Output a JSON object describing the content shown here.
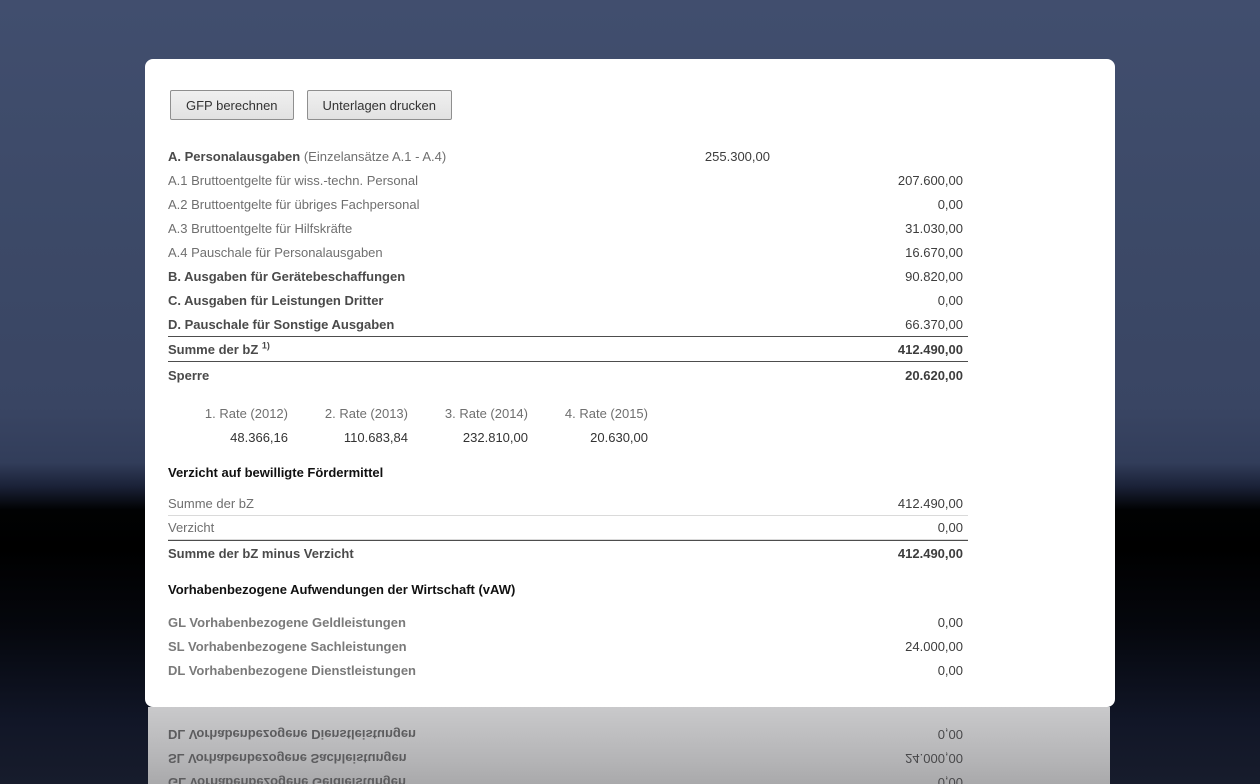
{
  "colors": {
    "background_top": "#3e4a68",
    "background_bottom": "#171c2c",
    "panel": "#ffffff",
    "label_muted": "#6f6f6f",
    "label_strong": "#4a4a4a",
    "heading": "#111111",
    "value": "#3d3d3d",
    "value_total": "#1f1f1f",
    "rule_dark": "#4d4d4d",
    "rule_light": "#dadada",
    "reflection_bg": "#bcbcbe"
  },
  "toolbar": {
    "calculate_label": "GFP berechnen",
    "print_label": "Unterlagen drucken"
  },
  "main_table": {
    "rows": [
      {
        "label": "A. Personalausgaben",
        "note": "(Einzelansätze A.1 - A.4)",
        "mid_value": "255.300,00",
        "value": ""
      },
      {
        "label": "A.1 Bruttoentgelte für wiss.-techn. Personal",
        "value": "207.600,00"
      },
      {
        "label": "A.2 Bruttoentgelte für übriges Fachpersonal",
        "value": "0,00"
      },
      {
        "label": "A.3 Bruttoentgelte für Hilfskräfte",
        "value": "31.030,00"
      },
      {
        "label": "A.4 Pauschale für Personalausgaben",
        "value": "16.670,00"
      },
      {
        "label": "B. Ausgaben für Gerätebeschaffungen",
        "value": "90.820,00"
      },
      {
        "label": "C. Ausgaben für Leistungen Dritter",
        "value": "0,00"
      },
      {
        "label": "D. Pauschale für Sonstige Ausgaben",
        "value": "66.370,00"
      },
      {
        "label": "Summe der bZ",
        "footnote_ref": "1)",
        "value": "412.490,00"
      },
      {
        "label": "Sperre",
        "value": "20.620,00"
      }
    ]
  },
  "rates": {
    "labels": [
      "1. Rate (2012)",
      "2. Rate (2013)",
      "3. Rate (2014)",
      "4. Rate (2015)"
    ],
    "values": [
      "48.366,16",
      "110.683,84",
      "232.810,00",
      "20.630,00"
    ]
  },
  "verzicht_section": {
    "heading": "Verzicht auf bewilligte Fördermittel",
    "rows": [
      {
        "label": "Summe der bZ",
        "value": "412.490,00"
      },
      {
        "label": "Verzicht",
        "value": "0,00"
      },
      {
        "label": "Summe der bZ minus Verzicht",
        "value": "412.490,00"
      }
    ]
  },
  "vaw_section": {
    "heading": "Vorhabenbezogene Aufwendungen der Wirtschaft (vAW)",
    "rows": [
      {
        "label": "GL Vorhabenbezogene Geldleistungen",
        "value": "0,00"
      },
      {
        "label": "SL Vorhabenbezogene Sachleistungen",
        "value": "24.000,00"
      },
      {
        "label": "DL Vorhabenbezogene Dienstleistungen",
        "value": "0,00"
      }
    ]
  }
}
